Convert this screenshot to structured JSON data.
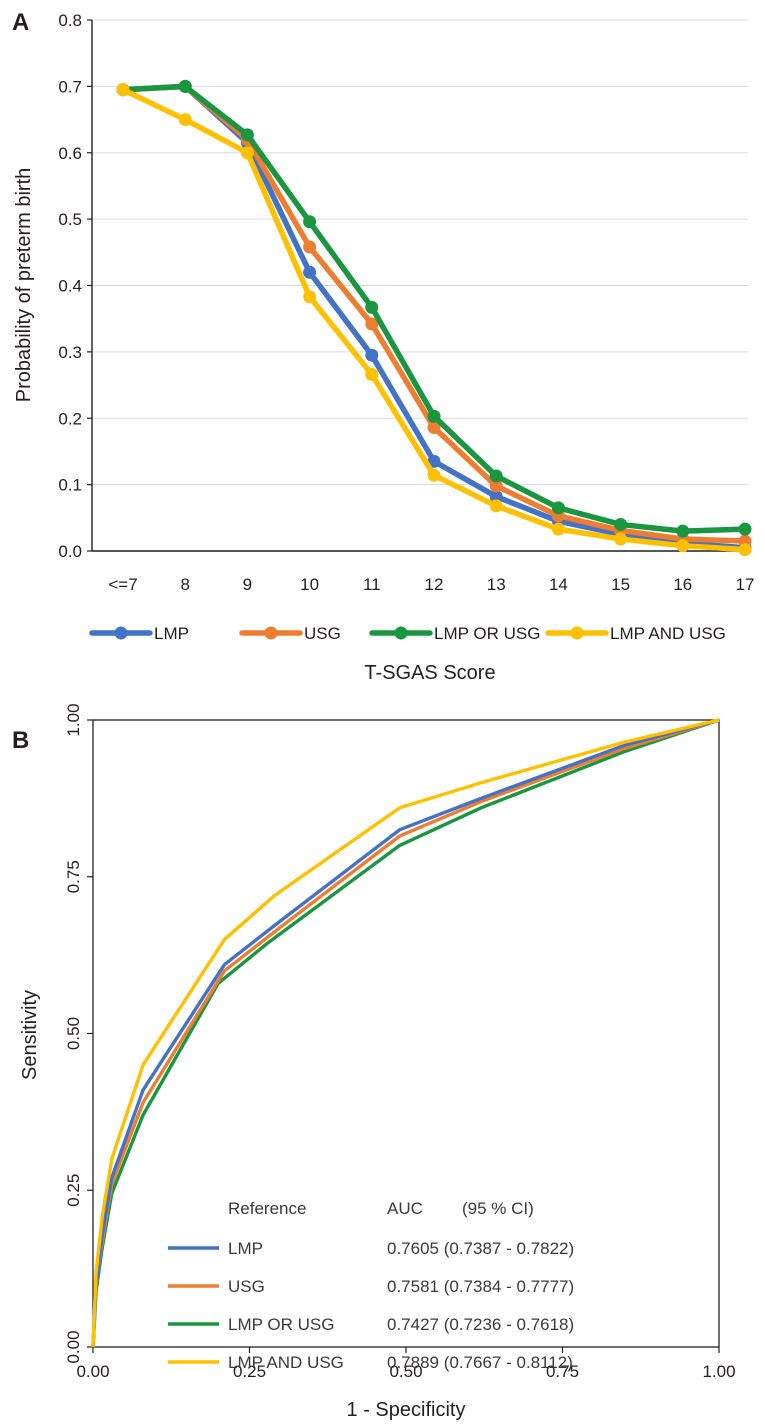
{
  "colors": {
    "lmp": "#4472c4",
    "usg": "#ed7d31",
    "lmp_or_usg": "#1a9641",
    "lmp_and_usg": "#ffc000",
    "grid": "#d9d9d9",
    "axis": "#231f20"
  },
  "chart_data": [
    {
      "type": "line",
      "panel": "A",
      "xlabel": "T-SGAS Score",
      "ylabel": "Probability of preterm birth",
      "categories": [
        "<=7",
        "8",
        "9",
        "10",
        "11",
        "12",
        "13",
        "14",
        "15",
        "16",
        "17"
      ],
      "ylim": [
        0,
        0.8
      ],
      "yticks": [
        "0.0",
        "0.1",
        "0.2",
        "0.3",
        "0.4",
        "0.5",
        "0.6",
        "0.7",
        "0.8"
      ],
      "grid": true,
      "legend_position": "bottom",
      "series": [
        {
          "name": "LMP",
          "color_key": "lmp",
          "values": [
            0.695,
            0.7,
            0.615,
            0.42,
            0.295,
            0.135,
            0.082,
            0.045,
            0.025,
            0.012,
            0.005
          ]
        },
        {
          "name": "USG",
          "color_key": "usg",
          "values": [
            0.695,
            0.7,
            0.62,
            0.458,
            0.342,
            0.186,
            0.098,
            0.053,
            0.031,
            0.018,
            0.015
          ]
        },
        {
          "name": "LMP OR USG",
          "color_key": "lmp_or_usg",
          "values": [
            0.695,
            0.7,
            0.627,
            0.496,
            0.367,
            0.203,
            0.113,
            0.065,
            0.04,
            0.03,
            0.033
          ]
        },
        {
          "name": "LMP AND USG",
          "color_key": "lmp_and_usg",
          "values": [
            0.695,
            0.65,
            0.6,
            0.383,
            0.266,
            0.114,
            0.068,
            0.033,
            0.018,
            0.008,
            0.002
          ]
        }
      ]
    },
    {
      "type": "line",
      "panel": "B",
      "xlabel": "1 - Specificity",
      "ylabel": "Sensitivity",
      "xlim": [
        0,
        1
      ],
      "ylim": [
        0,
        1
      ],
      "xticks": [
        "0.00",
        "0.25",
        "0.50",
        "0.75",
        "1.00"
      ],
      "yticks": [
        "0.00",
        "0.25",
        "0.50",
        "0.75",
        "1.00"
      ],
      "grid": false,
      "legend": {
        "header_reference": "Reference",
        "header_auc": "AUC",
        "header_ci": "(95 % CI)"
      },
      "series": [
        {
          "name": "LMP",
          "color_key": "lmp",
          "auc": "0.7605 (0.7387 - 0.7822)",
          "x": [
            0,
            0.005,
            0.015,
            0.03,
            0.08,
            0.21,
            0.3,
            0.49,
            0.62,
            0.85,
            1.0
          ],
          "y": [
            0,
            0.1,
            0.18,
            0.27,
            0.41,
            0.61,
            0.68,
            0.825,
            0.875,
            0.96,
            1.0
          ]
        },
        {
          "name": "USG",
          "color_key": "usg",
          "auc": "0.7581 (0.7384 - 0.7777)",
          "x": [
            0,
            0.005,
            0.015,
            0.03,
            0.08,
            0.21,
            0.3,
            0.49,
            0.62,
            0.85,
            1.0
          ],
          "y": [
            0,
            0.1,
            0.17,
            0.26,
            0.39,
            0.6,
            0.67,
            0.815,
            0.87,
            0.955,
            1.0
          ]
        },
        {
          "name": "LMP OR USG",
          "color_key": "lmp_or_usg",
          "auc": "0.7427 (0.7236 - 0.7618)",
          "x": [
            0,
            0.005,
            0.015,
            0.03,
            0.08,
            0.2,
            0.28,
            0.49,
            0.62,
            0.85,
            1.0
          ],
          "y": [
            0,
            0.09,
            0.16,
            0.245,
            0.37,
            0.58,
            0.645,
            0.8,
            0.86,
            0.95,
            1.0
          ]
        },
        {
          "name": "LMP AND USG",
          "color_key": "lmp_and_usg",
          "auc": "0.7889 (0.7667 - 0.8112)",
          "x": [
            0,
            0.005,
            0.015,
            0.03,
            0.08,
            0.21,
            0.29,
            0.49,
            0.62,
            0.85,
            1.0
          ],
          "y": [
            0,
            0.12,
            0.21,
            0.3,
            0.45,
            0.65,
            0.72,
            0.86,
            0.9,
            0.965,
            1.0
          ]
        }
      ]
    }
  ]
}
